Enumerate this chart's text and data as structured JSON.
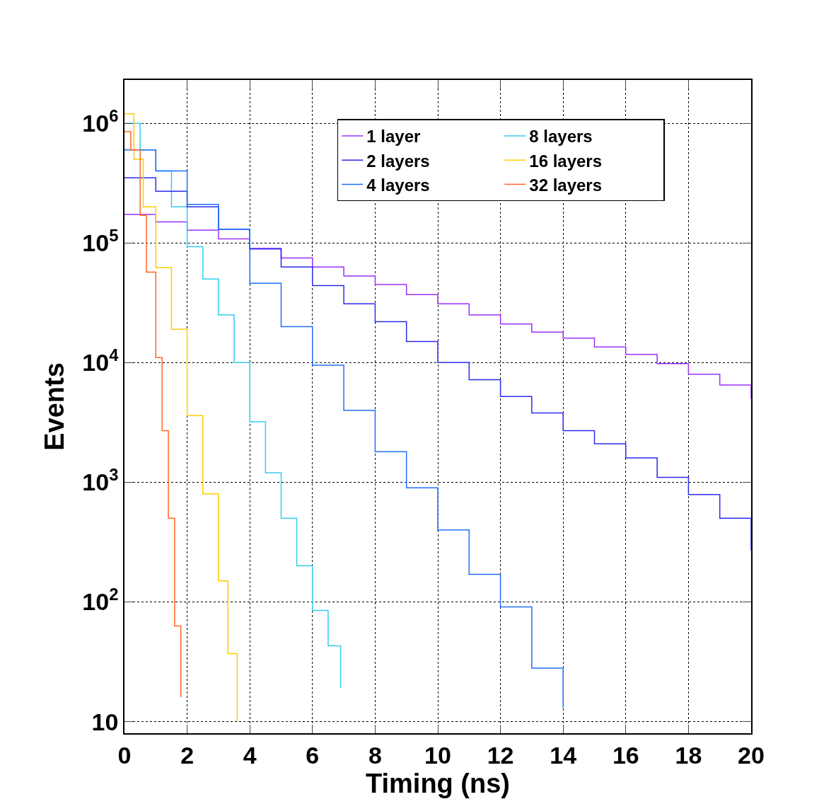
{
  "chart_data": {
    "type": "step",
    "xlabel": "Timing (ns)",
    "ylabel": "Events",
    "log": "y",
    "grid": true,
    "legend": "top right",
    "marker": "none",
    "line_style": "solid",
    "xlim": [
      0,
      20
    ],
    "xticks": [
      0,
      2,
      4,
      6,
      8,
      10,
      12,
      14,
      16,
      18,
      20
    ],
    "ylim": [
      8,
      2300000
    ],
    "yticks": [
      10,
      {
        "value": 100,
        "label": "10$^{2}$"
      },
      {
        "value": 1000,
        "label": "10$^{3}$"
      },
      {
        "value": 10000,
        "label": "10$^{4}$"
      },
      {
        "value": 100000,
        "label": "10$^{5}$"
      },
      {
        "value": 1000000,
        "label": "10$^{6}$"
      }
    ],
    "series": [
      {
        "name": "1 layer",
        "color": "#9b30ff",
        "x": [
          0,
          1,
          2,
          3,
          4,
          5,
          6,
          7,
          8,
          9,
          10,
          11,
          12,
          13,
          14,
          15,
          16,
          17,
          18,
          19,
          20
        ],
        "values": [
          173000,
          150000,
          128000,
          108000,
          90000,
          75000,
          63000,
          53000,
          45000,
          37000,
          31000,
          25000,
          21000,
          18000,
          16000,
          13500,
          11700,
          9800,
          8000,
          6500,
          5000
        ]
      },
      {
        "name": "8 layers",
        "color": "#33ccee",
        "x": [
          0,
          0.5,
          1,
          1.5,
          2,
          2.5,
          3,
          3.5,
          4,
          4.5,
          5,
          5.5,
          6,
          6.5,
          6.9
        ],
        "values": [
          1000000,
          600000,
          400000,
          200000,
          93000,
          50000,
          25000,
          10000,
          3200,
          1200,
          500,
          200,
          85,
          43,
          19
        ]
      },
      {
        "name": "2 layers",
        "color": "#2b2bf0",
        "x": [
          0,
          1,
          2,
          3,
          4,
          5,
          6,
          7,
          8,
          9,
          10,
          11,
          12,
          13,
          14,
          15,
          16,
          17,
          18,
          19,
          20
        ],
        "values": [
          350000,
          270000,
          200000,
          130000,
          89000,
          63000,
          44000,
          31000,
          22000,
          15000,
          10000,
          7200,
          5200,
          3800,
          2700,
          2100,
          1600,
          1100,
          790,
          500,
          270
        ]
      },
      {
        "name": "16 layers",
        "color": "#ffcc00",
        "x": [
          0,
          0.3,
          0.6,
          1,
          1.5,
          2,
          2.5,
          3,
          3.3,
          3.6
        ],
        "values": [
          1200000,
          500000,
          200000,
          62000,
          19000,
          3600,
          800,
          150,
          37,
          10
        ]
      },
      {
        "name": "4 layers",
        "color": "#1f6fff",
        "x": [
          0,
          1,
          2,
          3,
          4,
          5,
          6,
          7,
          8,
          9,
          10,
          11,
          12,
          13,
          14
        ],
        "values": [
          600000,
          400000,
          210000,
          130000,
          46000,
          20000,
          9500,
          4000,
          1800,
          900,
          400,
          170,
          91,
          28,
          13
        ]
      },
      {
        "name": "32 layers",
        "color": "#ff6622",
        "x": [
          0,
          0.2,
          0.5,
          0.7,
          1,
          1.2,
          1.4,
          1.6,
          1.8
        ],
        "values": [
          850000,
          600000,
          170000,
          57000,
          11000,
          2700,
          500,
          63,
          16
        ]
      }
    ]
  }
}
